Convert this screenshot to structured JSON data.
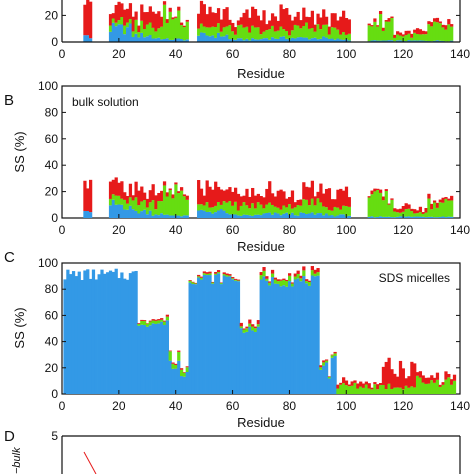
{
  "colors": {
    "helix": "#3399e6",
    "strand": "#66dd11",
    "turn": "#e61a1a",
    "axis": "#111111"
  },
  "panels": [
    {
      "letter": "",
      "annotation": "",
      "xlabel": "Residue",
      "ylabel": "",
      "xticks": [
        "0",
        "20",
        "40",
        "60",
        "80",
        "100",
        "120",
        "140"
      ],
      "yticks": [
        "0",
        "20"
      ]
    },
    {
      "letter": "B",
      "annotation": "bulk solution",
      "xlabel": "Residue",
      "ylabel": "SS (%)",
      "xticks": [
        "0",
        "20",
        "40",
        "60",
        "80",
        "100",
        "120",
        "140"
      ],
      "yticks": [
        "0",
        "20",
        "40",
        "60",
        "80",
        "100"
      ]
    },
    {
      "letter": "C",
      "annotation": "SDS micelles",
      "xlabel": "Residue",
      "ylabel": "SS (%)",
      "xticks": [
        "0",
        "20",
        "40",
        "60",
        "80",
        "100",
        "120",
        "140"
      ],
      "yticks": [
        "0",
        "20",
        "40",
        "60",
        "80",
        "100"
      ]
    },
    {
      "letter": "D",
      "annotation": "",
      "xlabel": "",
      "ylabel": "",
      "xticks": [],
      "yticks": [
        "5"
      ]
    }
  ],
  "chart_data": [
    {
      "type": "bar",
      "stacked": true,
      "x_range": [
        0,
        140
      ],
      "ylim": [
        0,
        100
      ],
      "visible_y_range": [
        0,
        30
      ],
      "profile": "bulk",
      "series_colors": [
        "helix",
        "strand",
        "turn"
      ]
    },
    {
      "type": "bar",
      "stacked": true,
      "x_range": [
        0,
        140
      ],
      "ylim": [
        0,
        100
      ],
      "profile": "bulk",
      "series_colors": [
        "helix",
        "strand",
        "turn"
      ],
      "segments": [
        {
          "from": 8,
          "to": 10,
          "helix": 5,
          "strand": 0,
          "turn": 19
        },
        {
          "from": 17,
          "to": 24,
          "helix": 10,
          "strand": 5,
          "turn": 9
        },
        {
          "from": 25,
          "to": 31,
          "helix": 5,
          "strand": 7,
          "turn": 8
        },
        {
          "from": 32,
          "to": 35,
          "helix": 3,
          "strand": 8,
          "turn": 11
        },
        {
          "from": 36,
          "to": 44,
          "helix": 2,
          "strand": 18,
          "turn": 2
        },
        {
          "from": 48,
          "to": 58,
          "helix": 5,
          "strand": 6,
          "turn": 12
        },
        {
          "from": 59,
          "to": 70,
          "helix": 2,
          "strand": 7,
          "turn": 9
        },
        {
          "from": 71,
          "to": 81,
          "helix": 3,
          "strand": 6,
          "turn": 11
        },
        {
          "from": 82,
          "to": 93,
          "helix": 3,
          "strand": 8,
          "turn": 9
        },
        {
          "from": 94,
          "to": 101,
          "helix": 2,
          "strand": 6,
          "turn": 11
        },
        {
          "from": 108,
          "to": 116,
          "helix": 1,
          "strand": 14,
          "turn": 2
        },
        {
          "from": 117,
          "to": 128,
          "helix": 1,
          "strand": 4,
          "turn": 3
        },
        {
          "from": 129,
          "to": 137,
          "helix": 1,
          "strand": 10,
          "turn": 3
        }
      ]
    },
    {
      "type": "bar",
      "stacked": true,
      "x_range": [
        0,
        140
      ],
      "ylim": [
        0,
        100
      ],
      "profile": "micelle",
      "series_colors": [
        "helix",
        "strand",
        "turn"
      ],
      "segments": [
        {
          "from": 1,
          "to": 26,
          "helix": 93,
          "strand": 0,
          "turn": 0
        },
        {
          "from": 27,
          "to": 37,
          "helix": 55,
          "strand": 2,
          "turn": 1
        },
        {
          "from": 38,
          "to": 44,
          "helix": 22,
          "strand": 5,
          "turn": 1
        },
        {
          "from": 45,
          "to": 62,
          "helix": 90,
          "strand": 1,
          "turn": 1
        },
        {
          "from": 63,
          "to": 69,
          "helix": 50,
          "strand": 2,
          "turn": 2
        },
        {
          "from": 70,
          "to": 90,
          "helix": 88,
          "strand": 3,
          "turn": 2
        },
        {
          "from": 91,
          "to": 96,
          "helix": 20,
          "strand": 2,
          "turn": 1
        },
        {
          "from": 97,
          "to": 112,
          "helix": 0,
          "strand": 6,
          "turn": 3
        },
        {
          "from": 113,
          "to": 124,
          "helix": 0,
          "strand": 6,
          "turn": 13
        },
        {
          "from": 125,
          "to": 138,
          "helix": 0,
          "strand": 10,
          "turn": 4
        }
      ]
    },
    {
      "type": "line",
      "visible_y_range": [
        4,
        5
      ],
      "x_range": [
        0,
        140
      ]
    }
  ]
}
